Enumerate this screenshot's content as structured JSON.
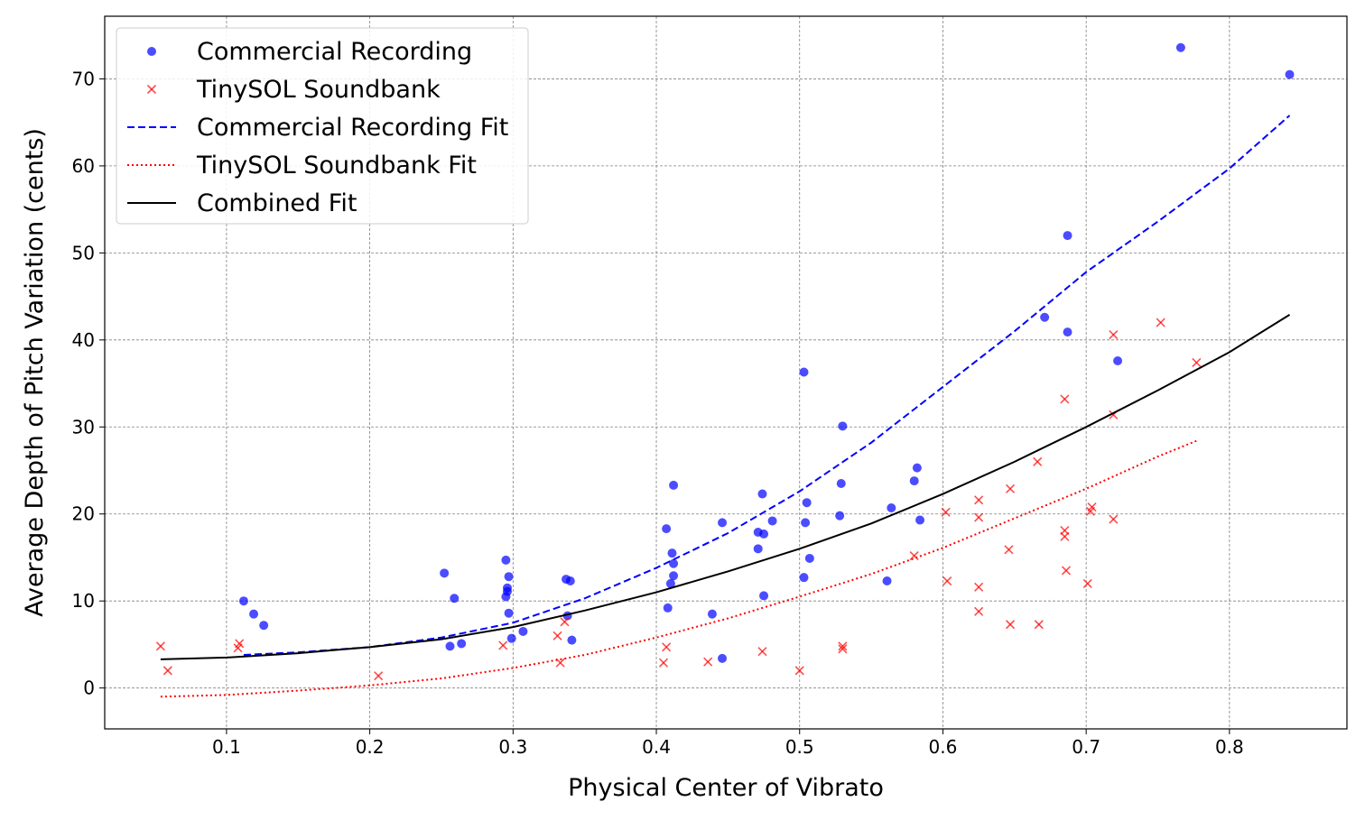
{
  "chart_data": {
    "type": "scatter",
    "title": "",
    "xlabel": "Physical Center of Vibrato",
    "ylabel": "Average Depth of Pitch Variation (cents)",
    "xlim": [
      0.015,
      0.882
    ],
    "ylim": [
      -4.7,
      77.2
    ],
    "xticks": [
      0.1,
      0.2,
      0.3,
      0.4,
      0.5,
      0.6,
      0.7,
      0.8
    ],
    "xtick_labels": [
      "0.1",
      "0.2",
      "0.3",
      "0.4",
      "0.5",
      "0.6",
      "0.7",
      "0.8"
    ],
    "yticks": [
      0,
      10,
      20,
      30,
      40,
      50,
      60,
      70
    ],
    "ytick_labels": [
      "0",
      "10",
      "20",
      "30",
      "40",
      "50",
      "60",
      "70"
    ],
    "grid": true,
    "legend_position": "top-left",
    "series": [
      {
        "name": "Commercial Recording",
        "kind": "scatter",
        "marker": "circle",
        "color": "#0000ff",
        "points": [
          [
            0.112,
            10.0
          ],
          [
            0.119,
            8.5
          ],
          [
            0.126,
            7.2
          ],
          [
            0.252,
            13.2
          ],
          [
            0.256,
            4.8
          ],
          [
            0.259,
            10.3
          ],
          [
            0.264,
            5.1
          ],
          [
            0.295,
            14.7
          ],
          [
            0.295,
            10.5
          ],
          [
            0.296,
            11.1
          ],
          [
            0.296,
            11.5
          ],
          [
            0.297,
            8.6
          ],
          [
            0.297,
            12.8
          ],
          [
            0.299,
            5.7
          ],
          [
            0.307,
            6.5
          ],
          [
            0.337,
            12.5
          ],
          [
            0.338,
            8.3
          ],
          [
            0.34,
            12.3
          ],
          [
            0.341,
            5.5
          ],
          [
            0.407,
            18.3
          ],
          [
            0.408,
            9.2
          ],
          [
            0.41,
            12.0
          ],
          [
            0.411,
            15.5
          ],
          [
            0.412,
            23.3
          ],
          [
            0.412,
            14.3
          ],
          [
            0.412,
            12.9
          ],
          [
            0.439,
            8.5
          ],
          [
            0.446,
            3.4
          ],
          [
            0.446,
            19.0
          ],
          [
            0.471,
            16.0
          ],
          [
            0.471,
            17.9
          ],
          [
            0.474,
            22.3
          ],
          [
            0.475,
            10.6
          ],
          [
            0.475,
            17.7
          ],
          [
            0.481,
            19.2
          ],
          [
            0.503,
            36.3
          ],
          [
            0.503,
            12.7
          ],
          [
            0.504,
            19.0
          ],
          [
            0.505,
            21.3
          ],
          [
            0.507,
            14.9
          ],
          [
            0.528,
            19.8
          ],
          [
            0.529,
            23.5
          ],
          [
            0.53,
            30.1
          ],
          [
            0.561,
            12.3
          ],
          [
            0.564,
            20.7
          ],
          [
            0.58,
            23.8
          ],
          [
            0.582,
            25.3
          ],
          [
            0.584,
            19.3
          ],
          [
            0.671,
            42.6
          ],
          [
            0.687,
            52.0
          ],
          [
            0.687,
            40.9
          ],
          [
            0.722,
            37.6
          ],
          [
            0.766,
            73.6
          ],
          [
            0.842,
            70.5
          ]
        ]
      },
      {
        "name": "TinySOL Soundbank",
        "kind": "scatter",
        "marker": "x",
        "color": "#ff0000",
        "points": [
          [
            0.054,
            4.8
          ],
          [
            0.059,
            2.0
          ],
          [
            0.108,
            4.6
          ],
          [
            0.109,
            5.1
          ],
          [
            0.206,
            1.4
          ],
          [
            0.293,
            4.9
          ],
          [
            0.331,
            6.0
          ],
          [
            0.333,
            2.9
          ],
          [
            0.336,
            7.6
          ],
          [
            0.405,
            2.9
          ],
          [
            0.407,
            4.7
          ],
          [
            0.436,
            3.0
          ],
          [
            0.474,
            4.2
          ],
          [
            0.5,
            2.0
          ],
          [
            0.53,
            4.8
          ],
          [
            0.53,
            4.5
          ],
          [
            0.58,
            15.2
          ],
          [
            0.602,
            20.2
          ],
          [
            0.603,
            12.3
          ],
          [
            0.625,
            21.6
          ],
          [
            0.625,
            19.6
          ],
          [
            0.625,
            11.6
          ],
          [
            0.625,
            8.8
          ],
          [
            0.646,
            15.9
          ],
          [
            0.647,
            22.9
          ],
          [
            0.647,
            7.3
          ],
          [
            0.666,
            26.0
          ],
          [
            0.667,
            7.3
          ],
          [
            0.685,
            33.2
          ],
          [
            0.685,
            18.1
          ],
          [
            0.685,
            17.4
          ],
          [
            0.686,
            13.5
          ],
          [
            0.701,
            12.0
          ],
          [
            0.703,
            20.3
          ],
          [
            0.704,
            20.8
          ],
          [
            0.719,
            40.6
          ],
          [
            0.719,
            31.4
          ],
          [
            0.719,
            19.4
          ],
          [
            0.752,
            42.0
          ],
          [
            0.777,
            37.4
          ]
        ]
      },
      {
        "name": "Commercial Recording Fit",
        "kind": "line",
        "style": "dashed",
        "color": "#0000ff",
        "points": [
          [
            0.112,
            3.8
          ],
          [
            0.15,
            4.1
          ],
          [
            0.2,
            4.7
          ],
          [
            0.25,
            5.8
          ],
          [
            0.3,
            7.5
          ],
          [
            0.35,
            10.3
          ],
          [
            0.4,
            13.8
          ],
          [
            0.45,
            17.8
          ],
          [
            0.5,
            22.6
          ],
          [
            0.55,
            28.2
          ],
          [
            0.6,
            34.6
          ],
          [
            0.65,
            41.0
          ],
          [
            0.7,
            47.8
          ],
          [
            0.75,
            53.6
          ],
          [
            0.8,
            59.7
          ],
          [
            0.842,
            65.8
          ]
        ]
      },
      {
        "name": "TinySOL Soundbank Fit",
        "kind": "line",
        "style": "dotted",
        "color": "#ff0000",
        "points": [
          [
            0.054,
            -1.0
          ],
          [
            0.1,
            -0.8
          ],
          [
            0.15,
            -0.3
          ],
          [
            0.2,
            0.3
          ],
          [
            0.25,
            1.1
          ],
          [
            0.3,
            2.3
          ],
          [
            0.35,
            3.8
          ],
          [
            0.4,
            5.8
          ],
          [
            0.45,
            8.0
          ],
          [
            0.5,
            10.5
          ],
          [
            0.55,
            13.1
          ],
          [
            0.6,
            16.1
          ],
          [
            0.65,
            19.5
          ],
          [
            0.7,
            22.9
          ],
          [
            0.75,
            26.6
          ],
          [
            0.777,
            28.4
          ]
        ]
      },
      {
        "name": "Combined Fit",
        "kind": "line",
        "style": "solid",
        "color": "#000000",
        "points": [
          [
            0.054,
            3.3
          ],
          [
            0.1,
            3.5
          ],
          [
            0.15,
            4.0
          ],
          [
            0.2,
            4.7
          ],
          [
            0.25,
            5.6
          ],
          [
            0.3,
            7.0
          ],
          [
            0.35,
            8.9
          ],
          [
            0.4,
            11.0
          ],
          [
            0.45,
            13.4
          ],
          [
            0.5,
            16.0
          ],
          [
            0.55,
            18.9
          ],
          [
            0.6,
            22.3
          ],
          [
            0.65,
            26.0
          ],
          [
            0.7,
            30.0
          ],
          [
            0.75,
            34.2
          ],
          [
            0.8,
            38.6
          ],
          [
            0.842,
            42.9
          ]
        ]
      }
    ],
    "legend": [
      {
        "label": "Commercial Recording",
        "symbol": "circle",
        "color": "#0000ff"
      },
      {
        "label": "TinySOL Soundbank",
        "symbol": "x",
        "color": "#ff0000"
      },
      {
        "label": "Commercial Recording Fit",
        "symbol": "dashed",
        "color": "#0000ff"
      },
      {
        "label": "TinySOL Soundbank Fit",
        "symbol": "dotted",
        "color": "#ff0000"
      },
      {
        "label": "Combined Fit",
        "symbol": "solid",
        "color": "#000000"
      }
    ]
  }
}
